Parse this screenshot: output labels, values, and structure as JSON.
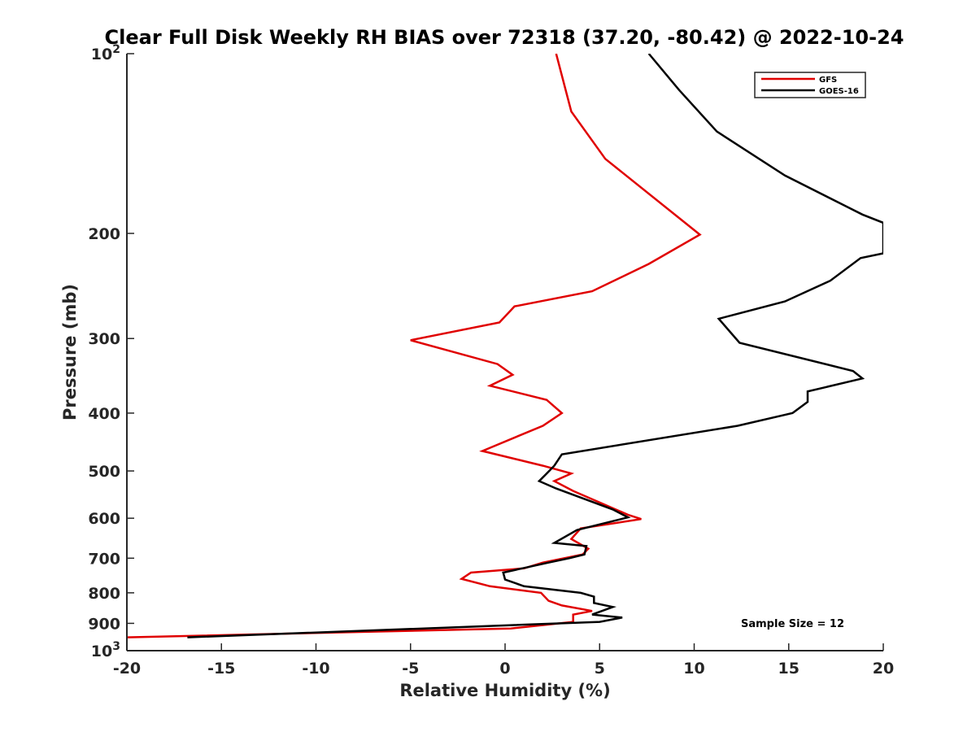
{
  "chart_data": {
    "type": "line",
    "title": "Clear Full Disk Weekly RH BIAS over 72318 (37.20, -80.42) @ 2022-10-24",
    "xlabel": "Relative Humidity (%)",
    "ylabel": "Pressure (mb)",
    "xlim": [
      -20,
      20
    ],
    "ylim": [
      100,
      1000
    ],
    "yscale": "log",
    "y_reversed": true,
    "grid": false,
    "legend_position": "top-right",
    "x_ticks": [
      -20,
      -15,
      -10,
      -5,
      0,
      5,
      10,
      15,
      20
    ],
    "x_tick_labels": [
      "-20",
      "-15",
      "-10",
      "-5",
      "0",
      "5",
      "10",
      "15",
      "20"
    ],
    "y_ticks": [
      100,
      200,
      300,
      400,
      500,
      600,
      700,
      800,
      900,
      1000
    ],
    "y_tick_labels": [
      {
        "base": "10",
        "exp": "2"
      },
      {
        "base": "200",
        "exp": ""
      },
      {
        "base": "300",
        "exp": ""
      },
      {
        "base": "400",
        "exp": ""
      },
      {
        "base": "500",
        "exp": ""
      },
      {
        "base": "600",
        "exp": ""
      },
      {
        "base": "700",
        "exp": ""
      },
      {
        "base": "800",
        "exp": ""
      },
      {
        "base": "900",
        "exp": ""
      },
      {
        "base": "10",
        "exp": "3"
      }
    ],
    "annotation": "Sample Size = 12",
    "series": [
      {
        "name": "GFS",
        "color": "#e00000",
        "points": [
          [
            2.7,
            100
          ],
          [
            3.5,
            125
          ],
          [
            5.3,
            150
          ],
          [
            10.3,
            201
          ],
          [
            7.6,
            225
          ],
          [
            4.6,
            250
          ],
          [
            0.5,
            265
          ],
          [
            -0.3,
            282
          ],
          [
            -5.0,
            302
          ],
          [
            -0.4,
            331
          ],
          [
            0.4,
            345
          ],
          [
            -0.8,
            360
          ],
          [
            2.2,
            380
          ],
          [
            3.0,
            400
          ],
          [
            2.0,
            420
          ],
          [
            -1.2,
            463
          ],
          [
            2.0,
            490
          ],
          [
            3.5,
            505
          ],
          [
            2.6,
            520
          ],
          [
            3.6,
            540
          ],
          [
            6.5,
            592
          ],
          [
            7.2,
            602
          ],
          [
            4.0,
            624
          ],
          [
            3.5,
            650
          ],
          [
            4.4,
            675
          ],
          [
            4.1,
            690
          ],
          [
            2.0,
            712
          ],
          [
            1.0,
            728
          ],
          [
            -1.8,
            740
          ],
          [
            -2.3,
            758
          ],
          [
            -0.8,
            780
          ],
          [
            1.9,
            800
          ],
          [
            2.3,
            825
          ],
          [
            3.0,
            840
          ],
          [
            4.6,
            858
          ],
          [
            3.6,
            870
          ],
          [
            3.6,
            895
          ],
          [
            0.3,
            918
          ],
          [
            -20.0,
            950
          ]
        ]
      },
      {
        "name": "GOES-16",
        "color": "#000000",
        "points": [
          [
            7.6,
            100
          ],
          [
            9.2,
            115
          ],
          [
            11.2,
            135
          ],
          [
            14.8,
            160
          ],
          [
            18.9,
            186
          ],
          [
            20.0,
            192
          ],
          [
            20.0,
            216
          ],
          [
            18.8,
            220
          ],
          [
            17.2,
            240
          ],
          [
            14.8,
            260
          ],
          [
            11.3,
            278
          ],
          [
            12.4,
            305
          ],
          [
            18.4,
            340
          ],
          [
            18.9,
            350
          ],
          [
            16.0,
            368
          ],
          [
            16.0,
            383
          ],
          [
            15.2,
            400
          ],
          [
            12.3,
            420
          ],
          [
            3.0,
            469
          ],
          [
            2.6,
            490
          ],
          [
            2.2,
            505
          ],
          [
            1.8,
            520
          ],
          [
            2.7,
            535
          ],
          [
            5.7,
            580
          ],
          [
            6.5,
            598
          ],
          [
            3.8,
            628
          ],
          [
            2.6,
            660
          ],
          [
            4.3,
            668
          ],
          [
            4.2,
            690
          ],
          [
            3.4,
            700
          ],
          [
            2.3,
            712
          ],
          [
            -0.1,
            740
          ],
          [
            0.0,
            760
          ],
          [
            1.0,
            780
          ],
          [
            4.0,
            800
          ],
          [
            4.7,
            812
          ],
          [
            4.7,
            832
          ],
          [
            5.7,
            845
          ],
          [
            4.6,
            870
          ],
          [
            6.2,
            880
          ],
          [
            5.0,
            895
          ],
          [
            -16.8,
            950
          ]
        ]
      }
    ]
  }
}
